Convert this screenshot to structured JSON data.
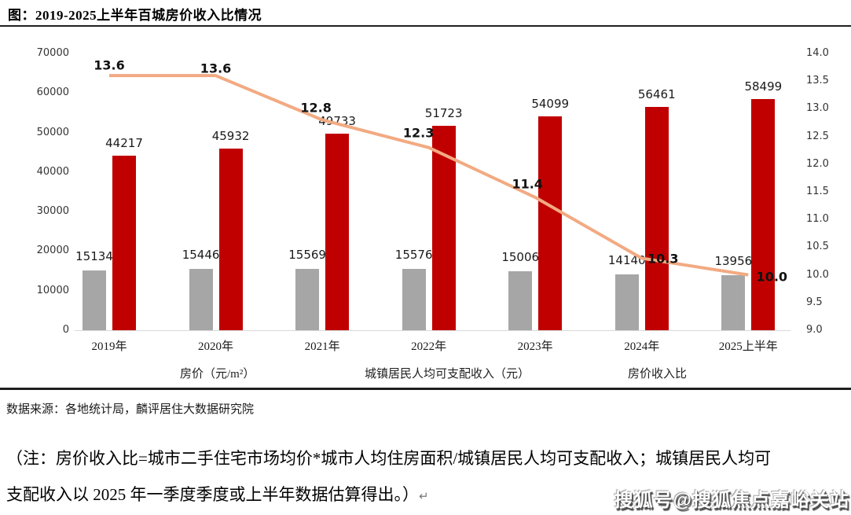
{
  "header": {
    "title": "图：2019-2025上半年百城房价收入比情况"
  },
  "chart_data": {
    "type": "bar",
    "subtype": "grouped-bars-with-line",
    "title": "图：2019-2025上半年百城房价收入比情况",
    "categories": [
      "2019年",
      "2020年",
      "2021年",
      "2022年",
      "2023年",
      "2024年",
      "2025上半年"
    ],
    "series": [
      {
        "name": "房价（元/m²）",
        "type": "bar",
        "axis": "left",
        "color": "#A6A6A6",
        "values": [
          15134,
          15446,
          15569,
          15576,
          15006,
          14140,
          13956
        ]
      },
      {
        "name": "城镇居民人均可支配收入（元）",
        "type": "bar",
        "axis": "left",
        "color": "#C00000",
        "values": [
          44217,
          45932,
          49733,
          51723,
          54099,
          56461,
          58499
        ]
      },
      {
        "name": "房价收入比",
        "type": "line",
        "axis": "right",
        "color": "#F2AA82",
        "values": [
          13.6,
          13.6,
          12.8,
          12.3,
          11.4,
          10.3,
          10.0
        ]
      }
    ],
    "left_axis": {
      "min": 0,
      "max": 70000,
      "step": 10000,
      "ticks": [
        0,
        10000,
        20000,
        30000,
        40000,
        50000,
        60000,
        70000
      ]
    },
    "right_axis": {
      "min": 9.0,
      "max": 14.0,
      "step": 0.5,
      "ticks": [
        9.0,
        9.5,
        10.0,
        10.5,
        11.0,
        11.5,
        12.0,
        12.5,
        13.0,
        13.5,
        14.0
      ]
    },
    "grid": false,
    "legend_position": "bottom"
  },
  "footer": {
    "source": "数据来源：各地统计局，麟评居住大数据研究院",
    "note_line1": "（注：房价收入比=城市二手住宅市场均价*城市人均住房面积/城镇居民人均可支配收入；城镇居民人均可",
    "note_line2": "支配收入以 2025 年一季度季度或上半年数据估算得出。）",
    "paragraph_mark": "↵",
    "watermark": "搜狐号@搜狐焦点嘉峪关站"
  },
  "colors": {
    "bar_gray": "#A6A6A6",
    "bar_red": "#C00000",
    "line_orange": "#F2AA82",
    "rule_dark": "#1F1F1F",
    "axis_line": "#D9D9D9"
  }
}
